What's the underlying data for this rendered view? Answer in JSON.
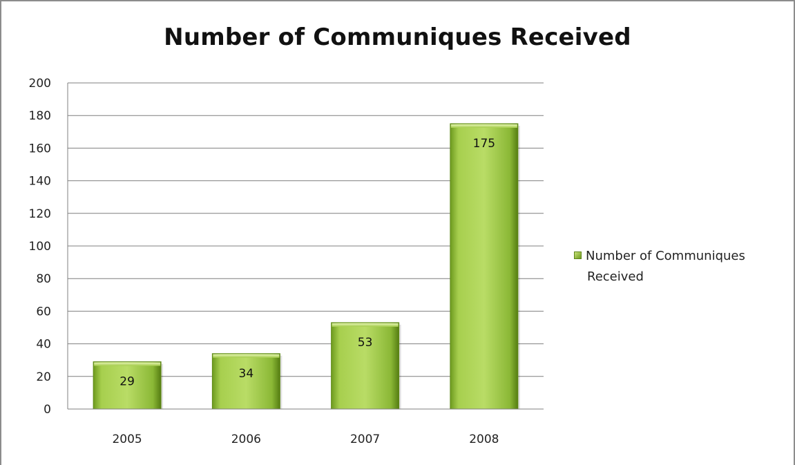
{
  "chart_data": {
    "type": "bar",
    "title": "Number of Communiques Received",
    "categories": [
      "2005",
      "2006",
      "2007",
      "2008"
    ],
    "series": [
      {
        "name": "Number of Communiques Received",
        "values": [
          29,
          34,
          53,
          175
        ]
      }
    ],
    "data_labels": [
      "29",
      "34",
      "53",
      "175"
    ],
    "ylim": [
      0,
      200
    ],
    "yticks": [
      "0",
      "20",
      "40",
      "60",
      "80",
      "100",
      "120",
      "140",
      "160",
      "180",
      "200"
    ],
    "grid": true,
    "legend": {
      "position": "right",
      "line1": "Number of Communiques",
      "line2": "Received"
    },
    "colors": {
      "bar": "#8db83a",
      "bar_dark": "#5f8a17",
      "bar_light": "#cfe68a",
      "grid": "#7f7f7f"
    }
  }
}
